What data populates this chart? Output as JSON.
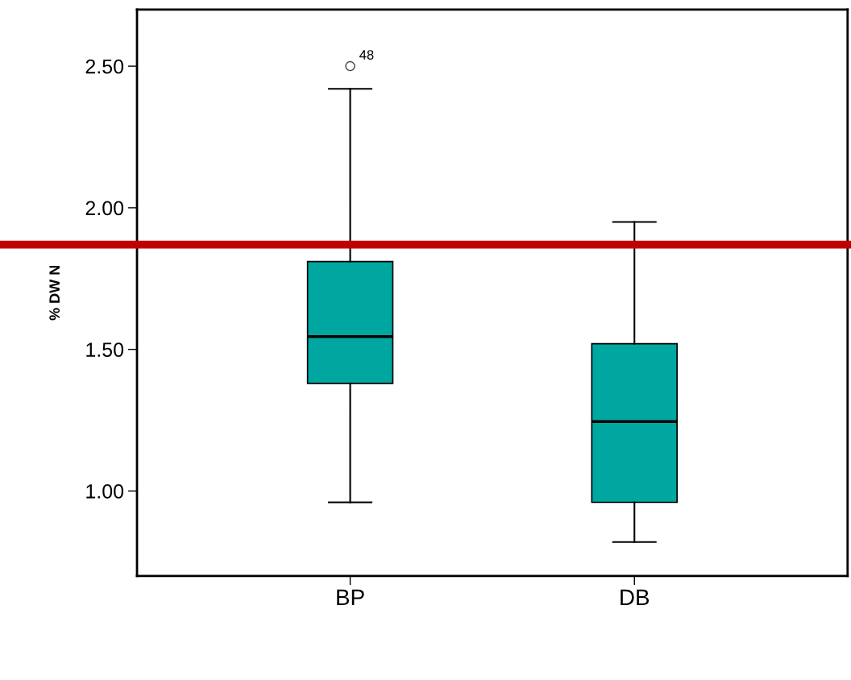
{
  "chart_data": {
    "type": "box",
    "ylabel": "% DW N",
    "categories": [
      "BP",
      "DB"
    ],
    "boxes": [
      {
        "low": 0.96,
        "q1": 1.38,
        "median": 1.545,
        "q3": 1.81,
        "high": 2.42,
        "outliers": [
          2.5
        ]
      },
      {
        "low": 0.82,
        "q1": 0.96,
        "median": 1.245,
        "q3": 1.52,
        "high": 1.95
      }
    ],
    "color": "#00a6a0",
    "ylim": [
      0.7,
      2.7
    ],
    "yticks": [
      {
        "value": 1.0,
        "label": "1.00"
      },
      {
        "value": 1.5,
        "label": "1.50"
      },
      {
        "value": 2.0,
        "label": "2.00"
      },
      {
        "value": 2.5,
        "label": "2.50"
      }
    ],
    "ref_lines": [
      {
        "axis": "y",
        "value": 1.87,
        "color": "#c00000"
      }
    ],
    "annotations": [
      "48"
    ],
    "grid": false
  }
}
